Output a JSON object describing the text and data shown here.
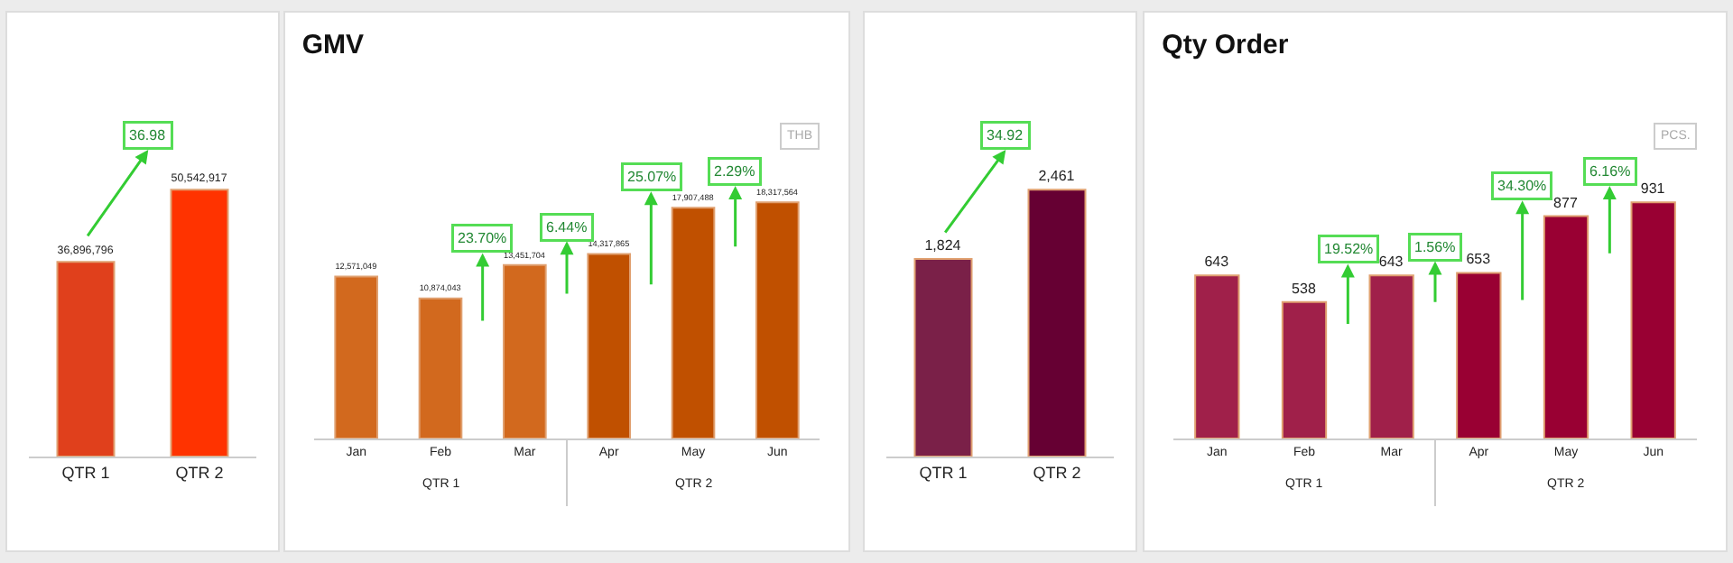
{
  "chart_data": [
    {
      "type": "bar",
      "categories": [
        "QTR 1",
        "QTR 2"
      ],
      "values": [
        36896796,
        50542917
      ],
      "colors": [
        "#e0401c",
        "#ff3300"
      ],
      "value_labels": [
        "36,896,796",
        "50,542,917"
      ],
      "tick_labels": "x",
      "annotations": [
        "36.98"
      ]
    },
    {
      "type": "bar",
      "title": "GMV",
      "categories": [
        "Jan",
        "Feb",
        "Mar",
        "Apr",
        "May",
        "Jun"
      ],
      "values": [
        12571049,
        10874043,
        13451704,
        14317865,
        17907488,
        18317564
      ],
      "colors": [
        "#d2691e",
        "#d2691e",
        "#d2691e",
        "#c05000",
        "#c05000",
        "#c05000"
      ],
      "value_labels": [
        "12,571,049",
        "10,874,043",
        "13,451,704",
        "14,317,865",
        "17,907,488",
        "18,317,564"
      ],
      "tick_labels": "x",
      "annotations": [
        "THB",
        "QTR 1",
        "QTR 2",
        "23.70%",
        "6.44%",
        "25.07%",
        "2.29%"
      ]
    },
    {
      "type": "bar",
      "categories": [
        "QTR 1",
        "QTR 2"
      ],
      "values": [
        1824,
        2461
      ],
      "colors": [
        "#7a2048",
        "#660033"
      ],
      "value_labels": [
        "1,824",
        "2,461"
      ],
      "tick_labels": "x",
      "annotations": [
        "34.92"
      ]
    },
    {
      "type": "bar",
      "title": "Qty Order",
      "categories": [
        "Jan",
        "Feb",
        "Mar",
        "Apr",
        "May",
        "Jun"
      ],
      "values": [
        643,
        538,
        643,
        653,
        877,
        931
      ],
      "colors": [
        "#a0204a",
        "#a0204a",
        "#a0204a",
        "#990033",
        "#990033",
        "#990033"
      ],
      "value_labels": [
        "643",
        "538",
        "643",
        "653",
        "877",
        "931"
      ],
      "tick_labels": "x",
      "annotations": [
        "PCS.",
        "QTR 1",
        "QTR 2",
        "19.52%",
        "1.56%",
        "34.30%",
        "6.16%"
      ]
    }
  ]
}
